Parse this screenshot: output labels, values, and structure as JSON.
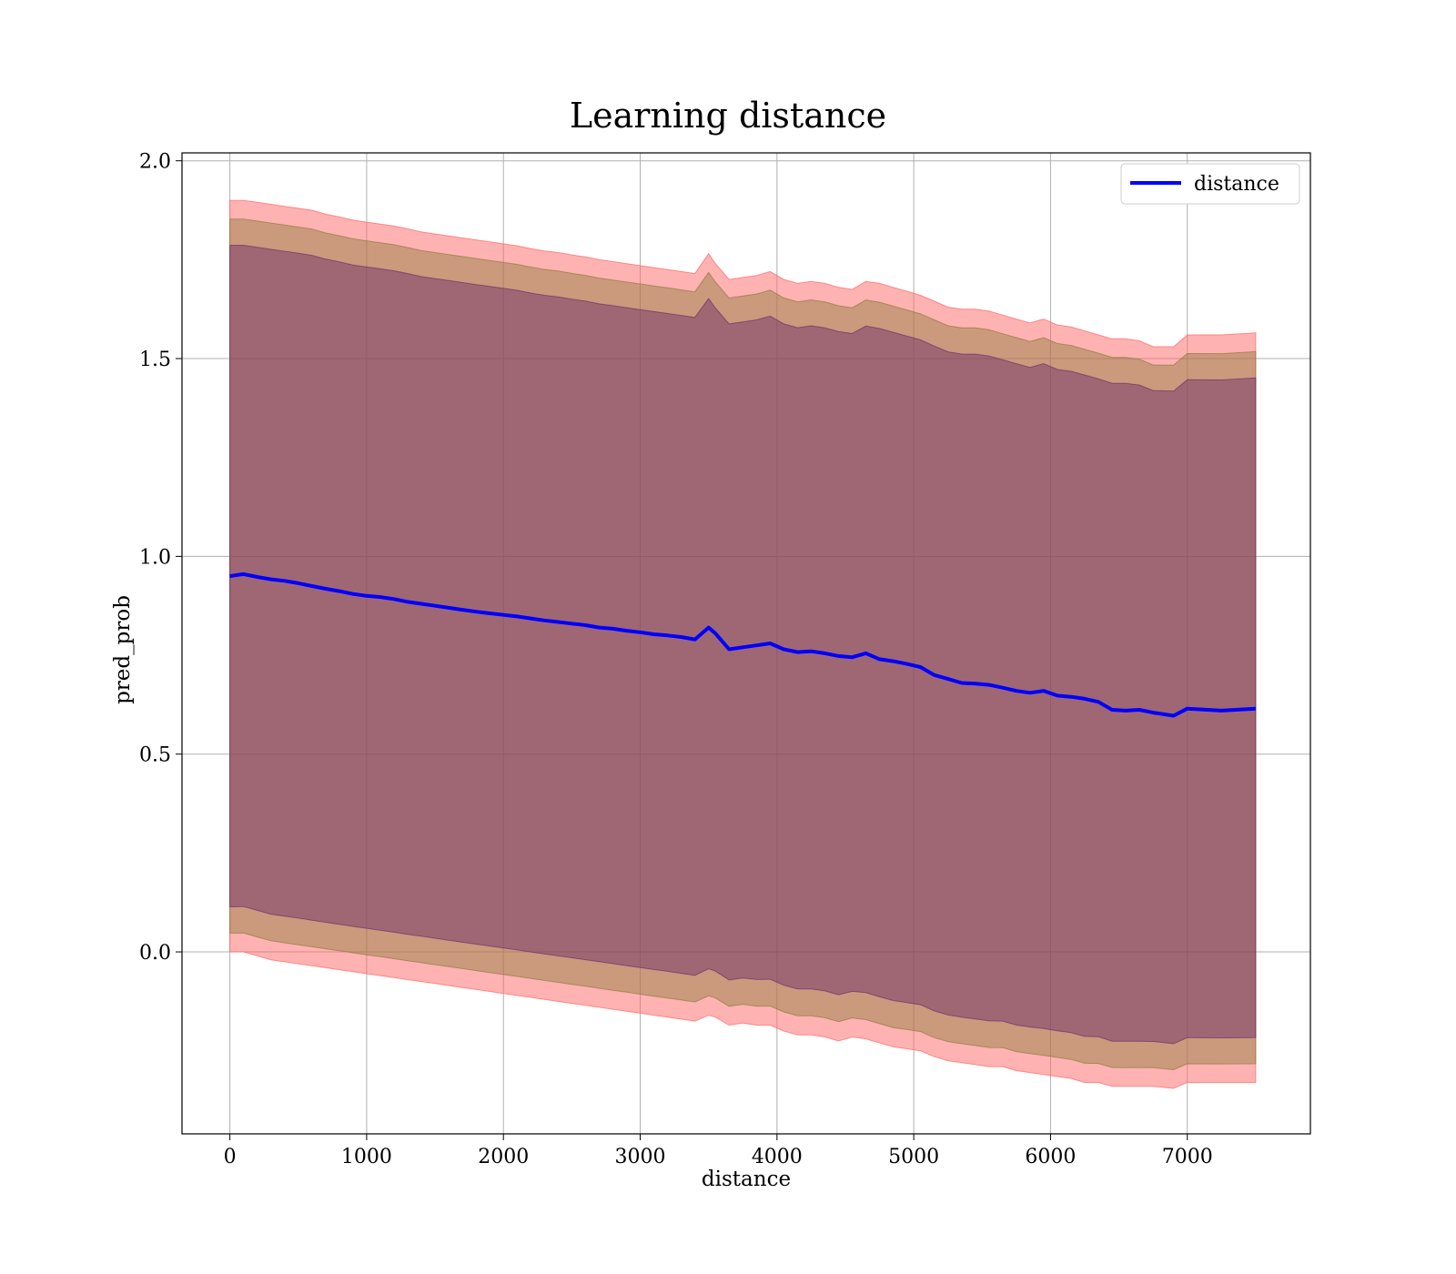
{
  "chart_data": {
    "type": "line",
    "title": "Learning distance",
    "xlabel": "distance",
    "ylabel": "pred_prob",
    "xlim": [
      -350,
      7900
    ],
    "ylim": [
      -0.46,
      2.02
    ],
    "xticks": [
      0,
      1000,
      2000,
      3000,
      4000,
      5000,
      6000,
      7000
    ],
    "yticks": [
      0.0,
      0.5,
      1.0,
      1.5,
      2.0
    ],
    "grid": true,
    "legend_position": "upper-right",
    "series": [
      {
        "name": "distance",
        "color": "#0000ff",
        "x": [
          0,
          100,
          200,
          300,
          400,
          500,
          600,
          700,
          800,
          900,
          1000,
          1100,
          1200,
          1300,
          1400,
          1500,
          1600,
          1700,
          1800,
          1900,
          2000,
          2100,
          2200,
          2300,
          2400,
          2500,
          2600,
          2700,
          2800,
          2900,
          3000,
          3100,
          3200,
          3300,
          3400,
          3500,
          3550,
          3650,
          3750,
          3850,
          3950,
          4050,
          4150,
          4250,
          4350,
          4450,
          4550,
          4650,
          4750,
          4850,
          4950,
          5050,
          5150,
          5250,
          5350,
          5450,
          5550,
          5650,
          5750,
          5850,
          5950,
          6050,
          6150,
          6250,
          6350,
          6450,
          6550,
          6650,
          6750,
          6900,
          7000,
          7250,
          7500
        ],
        "y": [
          0.95,
          0.955,
          0.948,
          0.942,
          0.938,
          0.932,
          0.925,
          0.918,
          0.912,
          0.905,
          0.9,
          0.897,
          0.892,
          0.885,
          0.88,
          0.875,
          0.87,
          0.865,
          0.86,
          0.856,
          0.852,
          0.848,
          0.843,
          0.838,
          0.834,
          0.83,
          0.826,
          0.82,
          0.817,
          0.812,
          0.808,
          0.803,
          0.8,
          0.796,
          0.79,
          0.82,
          0.805,
          0.765,
          0.77,
          0.775,
          0.78,
          0.765,
          0.758,
          0.76,
          0.755,
          0.748,
          0.745,
          0.755,
          0.74,
          0.735,
          0.728,
          0.72,
          0.7,
          0.69,
          0.68,
          0.678,
          0.675,
          0.668,
          0.66,
          0.655,
          0.66,
          0.648,
          0.645,
          0.64,
          0.632,
          0.612,
          0.61,
          0.612,
          0.605,
          0.597,
          0.615,
          0.61,
          0.615
        ],
        "y_lower": [
          0.0,
          0.0,
          -0.01,
          -0.02,
          -0.025,
          -0.03,
          -0.035,
          -0.04,
          -0.045,
          -0.05,
          -0.055,
          -0.06,
          -0.065,
          -0.07,
          -0.075,
          -0.08,
          -0.085,
          -0.09,
          -0.095,
          -0.1,
          -0.105,
          -0.11,
          -0.115,
          -0.12,
          -0.125,
          -0.13,
          -0.135,
          -0.14,
          -0.145,
          -0.15,
          -0.155,
          -0.16,
          -0.165,
          -0.17,
          -0.175,
          -0.16,
          -0.165,
          -0.185,
          -0.18,
          -0.185,
          -0.185,
          -0.2,
          -0.21,
          -0.21,
          -0.215,
          -0.225,
          -0.215,
          -0.22,
          -0.23,
          -0.24,
          -0.245,
          -0.25,
          -0.265,
          -0.275,
          -0.28,
          -0.285,
          -0.29,
          -0.29,
          -0.3,
          -0.305,
          -0.31,
          -0.315,
          -0.32,
          -0.33,
          -0.33,
          -0.34,
          -0.34,
          -0.34,
          -0.34,
          -0.345,
          -0.33,
          -0.33,
          -0.33
        ],
        "y_upper": [
          1.9,
          1.9,
          1.895,
          1.89,
          1.885,
          1.88,
          1.875,
          1.865,
          1.858,
          1.85,
          1.845,
          1.84,
          1.835,
          1.828,
          1.82,
          1.815,
          1.81,
          1.805,
          1.8,
          1.795,
          1.79,
          1.785,
          1.778,
          1.772,
          1.768,
          1.762,
          1.757,
          1.75,
          1.745,
          1.74,
          1.735,
          1.73,
          1.725,
          1.72,
          1.715,
          1.765,
          1.74,
          1.7,
          1.705,
          1.71,
          1.72,
          1.7,
          1.69,
          1.695,
          1.69,
          1.68,
          1.675,
          1.695,
          1.69,
          1.68,
          1.67,
          1.66,
          1.645,
          1.63,
          1.625,
          1.625,
          1.62,
          1.61,
          1.6,
          1.59,
          1.6,
          1.585,
          1.58,
          1.57,
          1.56,
          1.55,
          1.55,
          1.545,
          1.53,
          1.53,
          1.56,
          1.56,
          1.565
        ]
      }
    ],
    "bands": [
      {
        "color": "#ff6666",
        "opacity": 0.5
      },
      {
        "color": "#8b7a3a",
        "opacity": 0.45,
        "scale": 0.95
      },
      {
        "color": "#6b2a6a",
        "opacity": 0.45,
        "scale": 0.88
      }
    ]
  }
}
